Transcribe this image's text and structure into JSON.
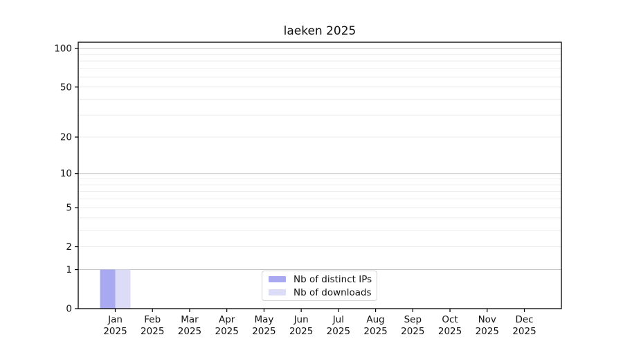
{
  "chart_data": {
    "type": "bar",
    "title": "laeken 2025",
    "categories": [
      "Jan",
      "Feb",
      "Mar",
      "Apr",
      "May",
      "Jun",
      "Jul",
      "Aug",
      "Sep",
      "Oct",
      "Nov",
      "Dec"
    ],
    "category_year": "2025",
    "series": [
      {
        "name": "Nb of distinct IPs",
        "color": "#a9a9f2",
        "values": [
          1,
          0,
          0,
          0,
          0,
          0,
          0,
          0,
          0,
          0,
          0,
          0
        ]
      },
      {
        "name": "Nb of downloads",
        "color": "#dcdcf6",
        "values": [
          1,
          0,
          0,
          0,
          0,
          0,
          0,
          0,
          0,
          0,
          0,
          0
        ]
      }
    ],
    "yscale": "log1p",
    "yticks": [
      0,
      1,
      2,
      5,
      10,
      20,
      50,
      100
    ],
    "minor_yticks": [
      3,
      4,
      6,
      7,
      8,
      9,
      30,
      40,
      60,
      70,
      80,
      90
    ],
    "ylim": [
      0,
      112
    ],
    "xlabel": "",
    "ylabel": "",
    "grid": "y",
    "legend_position": "lower center",
    "colors": {
      "major_gridline": "#c6c6c6",
      "minor_gridline": "#ececec",
      "axis": "#000000"
    }
  }
}
